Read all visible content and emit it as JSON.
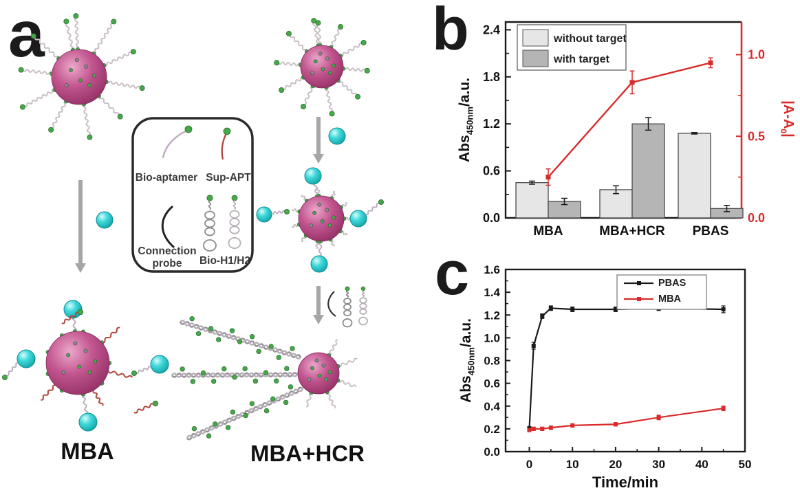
{
  "panels": {
    "a": {
      "label": "a",
      "legend_items": [
        "Bio-aptamer",
        "Sup-APT",
        "Connection probe",
        "Bio-H1/H2"
      ],
      "stage_labels": [
        "MBA",
        "MBA+HCR"
      ]
    },
    "b": {
      "label": "b"
    },
    "c": {
      "label": "c"
    }
  },
  "colors": {
    "accent_red": "#d92b2b",
    "bar_light": "#e6e6e6",
    "bar_dark": "#b5b5b5",
    "sphere_magenta": "#c2558f",
    "target_cyan": "#3fd9db",
    "dot_green": "#46a848",
    "strand_lavender": "#bdaec2",
    "strand_gray": "#c9bfc5",
    "arrow_gray": "#a6a6a6"
  },
  "chart_data": [
    {
      "type": "bar",
      "panel": "b",
      "categories": [
        "MBA",
        "MBA+HCR",
        "PBAS"
      ],
      "series": [
        {
          "name": "without target",
          "color": "#e6e6e6",
          "values": [
            0.45,
            0.36,
            1.08
          ],
          "errors": [
            0.02,
            0.05,
            0.01
          ]
        },
        {
          "name": "with target",
          "color": "#b5b5b5",
          "values": [
            0.21,
            1.2,
            0.12
          ],
          "errors": [
            0.04,
            0.08,
            0.04
          ]
        }
      ],
      "line_series": {
        "name": "|A-A0|",
        "axis": "right",
        "color": "#d92b2b",
        "values": [
          0.25,
          0.83,
          0.95
        ],
        "errors": [
          0.05,
          0.07,
          0.03
        ]
      },
      "ylabel_left": {
        "pre": "Abs",
        "sub": "450nm",
        "post": "/a.u."
      },
      "ylabel_right": {
        "pre": "|A-A",
        "sub": "0",
        "post": "|"
      },
      "yticks_left": [
        "0.0",
        "0.6",
        "1.2",
        "1.8",
        "2.4"
      ],
      "yticks_right": [
        "0.0",
        "0.5",
        "1.0"
      ],
      "ylim_left": [
        0,
        2.5
      ],
      "ylim_right": [
        0,
        1.2
      ],
      "legend_position": "top-left",
      "grid": false
    },
    {
      "type": "line",
      "panel": "c",
      "x": [
        0,
        1,
        3,
        5,
        10,
        20,
        30,
        45
      ],
      "series": [
        {
          "name": "PBAS",
          "color": "#1a1a1a",
          "values": [
            0.2,
            0.93,
            1.19,
            1.26,
            1.25,
            1.25,
            1.26,
            1.25
          ],
          "errors": [
            0.02,
            0.03,
            0.02,
            0.02,
            0.02,
            0.02,
            0.02,
            0.03
          ]
        },
        {
          "name": "MBA",
          "color": "#d92b2b",
          "values": [
            0.19,
            0.2,
            0.2,
            0.21,
            0.23,
            0.24,
            0.3,
            0.38
          ],
          "errors": [
            0.015,
            0.015,
            0.015,
            0.015,
            0.015,
            0.015,
            0.02,
            0.02
          ]
        }
      ],
      "xlabel": "Time/min",
      "ylabel": {
        "pre": "Abs",
        "sub": "450nm",
        "post": "/a.u."
      },
      "xticks": [
        "0",
        "10",
        "20",
        "30",
        "40",
        "50"
      ],
      "yticks": [
        "0.0",
        "0.2",
        "0.4",
        "0.6",
        "0.8",
        "1.0",
        "1.2",
        "1.4",
        "1.6"
      ],
      "xlim": [
        -5.5,
        50
      ],
      "ylim": [
        0,
        1.6
      ],
      "legend_position": "top-right",
      "grid": false
    }
  ]
}
